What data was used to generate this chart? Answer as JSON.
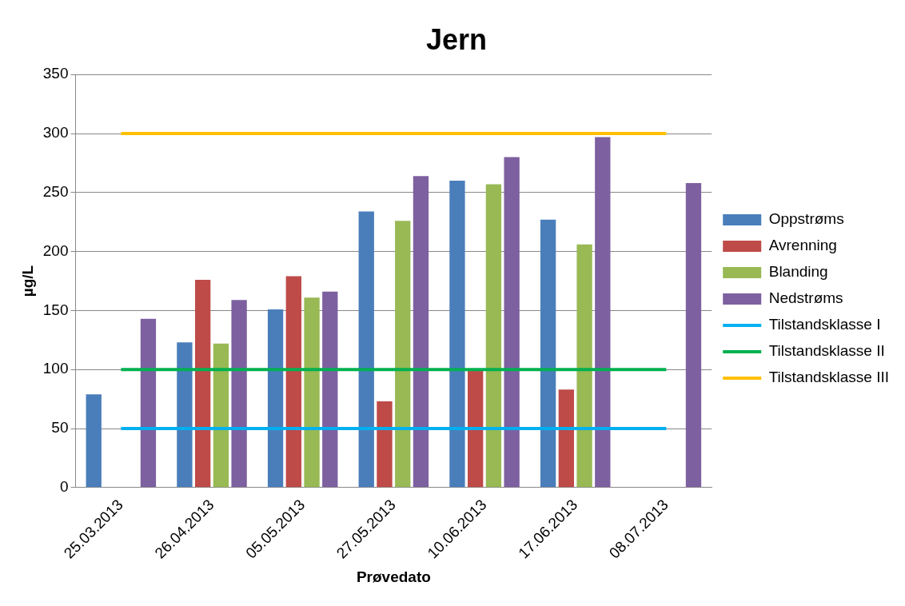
{
  "chart_data": {
    "type": "bar",
    "title": "Jern",
    "xlabel": "Prøvedato",
    "ylabel": "µg/L",
    "categories": [
      "25.03.2013",
      "26.04.2013",
      "05.05.2013",
      "27.05.2013",
      "10.06.2013",
      "17.06.2013",
      "08.07.2013"
    ],
    "series": [
      {
        "name": "Oppstrøms",
        "color": "#4a7ebb",
        "values": [
          79,
          123,
          151,
          234,
          260,
          227,
          null
        ]
      },
      {
        "name": "Avrenning",
        "color": "#be4b48",
        "values": [
          null,
          176,
          179,
          73,
          100,
          83,
          null
        ]
      },
      {
        "name": "Blanding",
        "color": "#98b954",
        "values": [
          null,
          122,
          161,
          226,
          257,
          206,
          null
        ]
      },
      {
        "name": "Nedstrøms",
        "color": "#7d60a0",
        "values": [
          143,
          159,
          166,
          264,
          280,
          297,
          258
        ]
      },
      {
        "name": "Tilstandsklasse I",
        "type": "line",
        "color": "#00b0f0",
        "values": [
          50,
          50,
          50,
          50,
          50,
          50,
          50
        ]
      },
      {
        "name": "Tilstandsklasse II",
        "type": "line",
        "color": "#00b050",
        "values": [
          100,
          100,
          100,
          100,
          100,
          100,
          100
        ]
      },
      {
        "name": "Tilstandsklasse III",
        "type": "line",
        "color": "#ffc000",
        "values": [
          300,
          300,
          300,
          300,
          300,
          300,
          300
        ]
      }
    ],
    "ylim": [
      0,
      350
    ],
    "yticks": [
      0,
      50,
      100,
      150,
      200,
      250,
      300,
      350
    ],
    "grid": "y",
    "legend": "right",
    "marker": "none",
    "line_style": "solid"
  }
}
